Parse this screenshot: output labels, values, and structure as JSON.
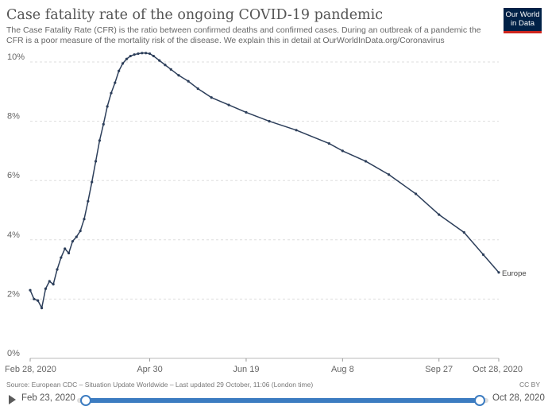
{
  "header": {
    "title": "Case fatality rate of the ongoing COVID-19 pandemic",
    "subtitle": "The Case Fatality Rate (CFR) is the ratio between confirmed deaths and confirmed cases. During an outbreak of a pandemic the CFR is a poor measure of the mortality risk of the disease. We explain this in detail at OurWorldInData.org/Coronavirus",
    "logo_line1": "Our World",
    "logo_line2": "in Data"
  },
  "footer": {
    "source": "Source: European CDC – Situation Update Worldwide – Last updated 29 October, 11:06 (London time)",
    "license": "CC BY"
  },
  "timeline": {
    "start_label": "Feb 23, 2020",
    "end_label": "Oct 28, 2020",
    "start_fraction": 0,
    "end_fraction": 1
  },
  "colors": {
    "line": "#2c3e5a",
    "grid": "#dddddd",
    "slider_accent": "#3c7cc1",
    "logo_bg": "#002147",
    "logo_accent": "#ce261e"
  },
  "chart_data": {
    "type": "line",
    "title": "Case fatality rate of the ongoing COVID-19 pandemic",
    "xlim": [
      "2020-02-28",
      "2020-10-28"
    ],
    "ylim": [
      0,
      10
    ],
    "y_ticks": [
      0,
      2,
      4,
      6,
      8,
      10
    ],
    "y_tick_labels": [
      "0%",
      "2%",
      "4%",
      "6%",
      "8%",
      "10%"
    ],
    "x_ticks": [
      "2020-02-28",
      "2020-04-30",
      "2020-06-19",
      "2020-08-08",
      "2020-09-27",
      "2020-10-28"
    ],
    "x_tick_labels": [
      "Feb 28, 2020",
      "Apr 30",
      "Jun 19",
      "Aug 8",
      "Sep 27",
      "Oct 28, 2020"
    ],
    "grid": "horizontal dashed",
    "legend": "inline label at line end",
    "series": [
      {
        "name": "Europe",
        "x": [
          "2020-02-28",
          "2020-03-01",
          "2020-03-03",
          "2020-03-05",
          "2020-03-07",
          "2020-03-09",
          "2020-03-11",
          "2020-03-13",
          "2020-03-15",
          "2020-03-17",
          "2020-03-19",
          "2020-03-21",
          "2020-03-23",
          "2020-03-25",
          "2020-03-27",
          "2020-03-29",
          "2020-03-31",
          "2020-04-02",
          "2020-04-04",
          "2020-04-06",
          "2020-04-08",
          "2020-04-10",
          "2020-04-12",
          "2020-04-14",
          "2020-04-16",
          "2020-04-18",
          "2020-04-20",
          "2020-04-22",
          "2020-04-24",
          "2020-04-26",
          "2020-04-28",
          "2020-04-30",
          "2020-05-02",
          "2020-05-05",
          "2020-05-08",
          "2020-05-11",
          "2020-05-15",
          "2020-05-20",
          "2020-05-25",
          "2020-06-01",
          "2020-06-10",
          "2020-06-19",
          "2020-07-01",
          "2020-07-15",
          "2020-08-01",
          "2020-08-08",
          "2020-08-20",
          "2020-09-01",
          "2020-09-15",
          "2020-09-27",
          "2020-10-10",
          "2020-10-20",
          "2020-10-28"
        ],
        "y": [
          2.3,
          2.0,
          1.95,
          1.7,
          2.35,
          2.6,
          2.5,
          3.0,
          3.4,
          3.7,
          3.55,
          3.95,
          4.1,
          4.3,
          4.7,
          5.3,
          5.95,
          6.65,
          7.35,
          7.9,
          8.5,
          8.95,
          9.3,
          9.7,
          9.95,
          10.1,
          10.2,
          10.25,
          10.28,
          10.3,
          10.3,
          10.28,
          10.2,
          10.05,
          9.9,
          9.75,
          9.55,
          9.35,
          9.1,
          8.8,
          8.55,
          8.3,
          8.0,
          7.7,
          7.25,
          7.0,
          6.65,
          6.2,
          5.55,
          4.85,
          4.25,
          3.5,
          2.9
        ]
      }
    ]
  }
}
